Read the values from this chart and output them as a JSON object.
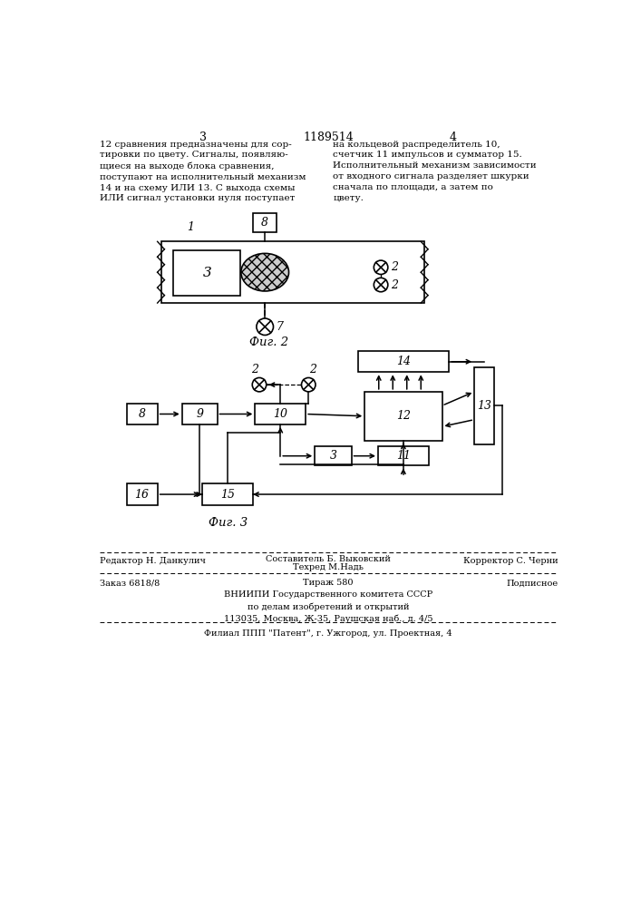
{
  "page_number_left": "3",
  "page_number_center": "1189514",
  "page_number_right": "4",
  "text_left": "12 сравнения предназначены для сор-\nтировки по цвету. Сигналы, появляю-\nщиеся на выходе блока сравнения,\nпоступают на исполнительный механизм\n14 и на схему ИЛИ 13. С выхода схемы\nИЛИ сигнал установки нуля поступает",
  "text_right": "на кольцевой распределитель 10,\nсчетчик 11 импульсов и сумматор 15.\nИсполнительный механизм зависимости\nот входного сигнала разделяет шкурки\nсначала по площади, а затем по\nцвету.",
  "fig2_label": "Фиг. 2",
  "fig3_label": "Фиг. 3",
  "footer_line1_left": "Редактор Н. Данкулич",
  "footer_line1_center1": "Составитель Б. Выковский",
  "footer_line1_center2": "Техред М.Надь",
  "footer_line1_right": "Корректор С. Черни",
  "footer_line2_left": "Заказ 6818/8",
  "footer_line2_center": "Тираж 580",
  "footer_line2_right": "Подписное",
  "footer_line3": "ВНИИПИ Государственного комитета СССР\nпо делам изобретений и открытий\n113035, Москва, Ж-35, Раушская наб., д. 4/5",
  "footer_line4": "Филиал ППП \"Патент\", г. Ужгород, ул. Проектная, 4",
  "bg_color": "#ffffff",
  "text_color": "#000000",
  "line_color": "#000000"
}
